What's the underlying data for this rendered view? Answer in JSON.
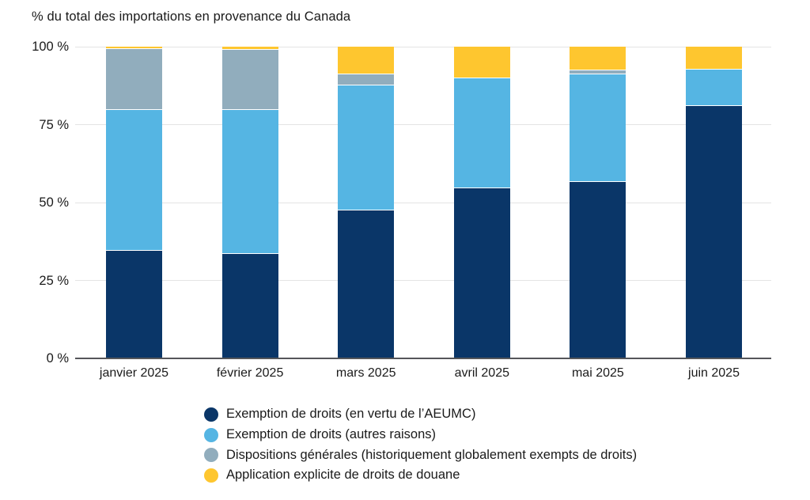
{
  "title": "% du total des importations en provenance du Canada",
  "chart_data": {
    "type": "bar",
    "stacked": true,
    "title": "% du total des importations en provenance du Canada",
    "categories": [
      "janvier 2025",
      "février 2025",
      "mars 2025",
      "avril 2025",
      "mai 2025",
      "juin 2025"
    ],
    "series": [
      {
        "name": "Exemption de droits (en vertu de l’AEUMC)",
        "color": "#0A3668",
        "values": [
          34.4,
          33.5,
          47.4,
          54.6,
          56.7,
          81.0
        ]
      },
      {
        "name": "Exemption de droits (autres raisons)",
        "color": "#55B5E3",
        "values": [
          45.2,
          46.2,
          40.2,
          35.3,
          34.5,
          11.6
        ]
      },
      {
        "name": "Dispositions générales (historiquement globalement exempts de droits)",
        "color": "#91ADBD",
        "values": [
          19.7,
          19.3,
          3.4,
          0,
          1.1,
          0
        ]
      },
      {
        "name": "Application explicite de droits de douane",
        "color": "#FEC62F",
        "values": [
          0.7,
          1.0,
          9.0,
          10.1,
          7.7,
          7.4
        ]
      }
    ],
    "xlabel": "",
    "ylabel": "",
    "y_ticks": [
      "100 %",
      "75 %",
      "50 %",
      "25 %",
      "0 %"
    ],
    "y_tick_values": [
      100,
      75,
      50,
      25,
      0
    ],
    "ylim": [
      0,
      100
    ],
    "grid": true,
    "legend_position": "bottom",
    "gridline_color": "#e4e4e4",
    "axis_line_color": "#55565a",
    "text_color": "#1a1a1a",
    "background_color": "#ffffff"
  }
}
